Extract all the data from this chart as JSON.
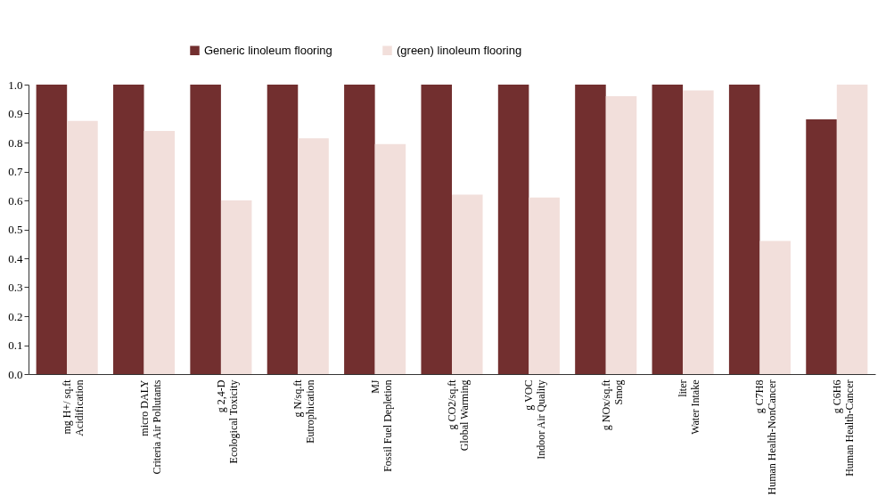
{
  "chart_data": {
    "type": "bar",
    "categories": [
      "mg H+/ sq.ft\nAcidification",
      "micro DALY\nCriteria Air Pollutants",
      "g 2,4-D\nEcological Toxicity",
      "g N/sq.ft\nEutrophication",
      "MJ\nFossil Fuel Depletion",
      "g CO2/sq.ft\nGlobal Warming",
      "g VOC\nIndoor Air Quality",
      "g NOx/sq.ft\nSmog",
      "liter\nWater Intake",
      "g C7H8\nHuman Health-NonCancer",
      "g C6H6\nHuman Health-Cancer"
    ],
    "series": [
      {
        "name": "Generic linoleum flooring",
        "color": "#722f2f",
        "values": [
          1,
          1,
          1,
          1,
          1,
          1,
          1,
          1,
          1,
          1,
          0.88
        ]
      },
      {
        "name": "(green) linoleum flooring",
        "color": "#f2dfdb",
        "values": [
          0.875,
          0.84,
          0.6,
          0.815,
          0.795,
          0.62,
          0.61,
          0.96,
          0.98,
          0.46,
          1
        ]
      }
    ],
    "ylim": [
      0,
      1
    ],
    "yticks": [
      {
        "value": 0,
        "label": "0.0"
      },
      {
        "value": 0.1,
        "label": "0.1"
      },
      {
        "value": 0.2,
        "label": "0.2"
      },
      {
        "value": 0.3,
        "label": "0.3"
      },
      {
        "value": 0.4,
        "label": "0.4"
      },
      {
        "value": 0.5,
        "label": "0.5"
      },
      {
        "value": 0.6,
        "label": "0.6"
      },
      {
        "value": 0.7,
        "label": "0.7"
      },
      {
        "value": 0.8,
        "label": "0.8"
      },
      {
        "value": 0.9,
        "label": "0.9"
      },
      {
        "value": 1,
        "label": "1.0"
      }
    ],
    "grid": false,
    "legend": "top"
  }
}
